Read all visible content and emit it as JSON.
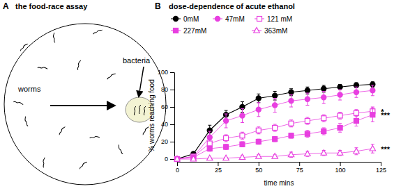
{
  "diagram": {
    "panel_label": "A",
    "title": "the food-race assay",
    "labels": [
      "worms",
      "bacteria"
    ]
  },
  "chart_data": {
    "type": "line",
    "panel_label": "B",
    "title": "dose-dependence of acute ethanol",
    "x_label": "time mins",
    "y_label": "% worms reaching food",
    "x": [
      0,
      10,
      20,
      30,
      40,
      50,
      60,
      70,
      80,
      90,
      100,
      110,
      120
    ],
    "xlim": [
      0,
      125
    ],
    "xticks": [
      0,
      25,
      50,
      75,
      100,
      125
    ],
    "ylim": [
      0,
      100
    ],
    "yticks": [
      0,
      20,
      40,
      60,
      80,
      100
    ],
    "legend": "top",
    "series": [
      {
        "name": "0mM",
        "color": "#000000",
        "marker": "circle",
        "line_style": "solid",
        "values": [
          0,
          6,
          33,
          51,
          60,
          70,
          73,
          77,
          79,
          81,
          83,
          85,
          86
        ],
        "errors": [
          0,
          2,
          6,
          5,
          6,
          5,
          5,
          4,
          4,
          4,
          3,
          3,
          3
        ]
      },
      {
        "name": "47mM",
        "color": "#e83fe0",
        "marker": "circle",
        "line_style": "solid",
        "values": [
          0,
          3,
          25,
          44,
          50,
          57,
          62,
          67,
          69,
          71,
          74,
          77,
          79
        ],
        "errors": [
          0,
          2,
          7,
          8,
          8,
          8,
          8,
          7,
          7,
          7,
          6,
          6,
          6
        ]
      },
      {
        "name": "121 mM",
        "color": "#e83fe0",
        "marker": "square-open",
        "line_style": "solid",
        "values": [
          0,
          3,
          18,
          24,
          27,
          33,
          36,
          41,
          44,
          47,
          50,
          53,
          55
        ],
        "errors": [
          0,
          2,
          4,
          4,
          4,
          4,
          4,
          4,
          4,
          4,
          4,
          4,
          5
        ],
        "annotation": "*"
      },
      {
        "name": "227mM",
        "color": "#e83fe0",
        "marker": "square",
        "line_style": "solid",
        "values": [
          0,
          2,
          12,
          14,
          17,
          20,
          23,
          27,
          29,
          32,
          36,
          44,
          51
        ],
        "errors": [
          0,
          2,
          3,
          3,
          3,
          3,
          3,
          3,
          4,
          4,
          5,
          6,
          8
        ],
        "annotation": "***"
      },
      {
        "name": "363mM",
        "color": "#e83fe0",
        "marker": "triangle-open",
        "line_style": "solid",
        "values": [
          0,
          0,
          1,
          1,
          2,
          3,
          3,
          5,
          6,
          7,
          7,
          9,
          12
        ],
        "errors": [
          0,
          0,
          1,
          1,
          2,
          2,
          2,
          3,
          3,
          3,
          3,
          4,
          5
        ],
        "annotation": "***"
      }
    ]
  }
}
